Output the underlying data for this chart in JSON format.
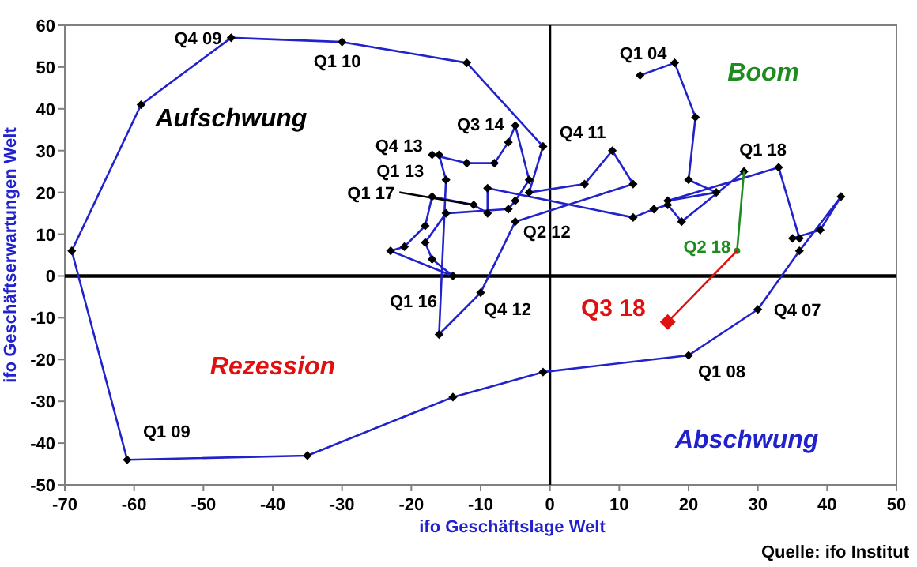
{
  "chart_data": {
    "type": "line",
    "xlabel": "ifo Geschäftslage Welt",
    "ylabel": "ifo Geschäftserwartungen Welt",
    "xlim": [
      -70,
      50
    ],
    "xticks": [
      -70,
      -60,
      -50,
      -40,
      -30,
      -20,
      -10,
      0,
      10,
      20,
      30,
      40,
      50
    ],
    "ylim": [
      -50,
      60
    ],
    "yticks": [
      -50,
      -40,
      -30,
      -20,
      -10,
      0,
      10,
      20,
      30,
      40,
      50,
      60
    ],
    "grid": false,
    "series": [
      {
        "color": "#2222cc",
        "marker": "diamond",
        "x": [
          13,
          18,
          21,
          20,
          24,
          17,
          33,
          36,
          35,
          39,
          42,
          36,
          30,
          20,
          -1,
          -14,
          -35,
          -61,
          -69,
          -59,
          -46,
          -30,
          -12,
          -1,
          -3,
          5,
          9,
          12,
          -5,
          -10,
          -16,
          -15,
          -16,
          -17,
          -12,
          -8,
          -6,
          -5,
          -3,
          -5,
          -6,
          -15,
          -18,
          -17,
          -14,
          -23,
          -21,
          -18,
          -17,
          -11,
          -9,
          -9,
          12,
          15,
          17,
          19,
          28
        ],
        "values": [
          48,
          51,
          38,
          23,
          20,
          18,
          26,
          9,
          9,
          11,
          19,
          6,
          -8,
          -19,
          -23,
          -29,
          -43,
          -44,
          6,
          41,
          57,
          56,
          51,
          31,
          20,
          22,
          30,
          22,
          13,
          -4,
          -14,
          23,
          29,
          29,
          27,
          27,
          32,
          36,
          23,
          18,
          16,
          15,
          8,
          4,
          0,
          6,
          7,
          12,
          19,
          17,
          15,
          21,
          14,
          16,
          17,
          13,
          25
        ]
      },
      {
        "color": "#1e8c1e",
        "marker": "circle",
        "x": [
          28,
          27
        ],
        "values": [
          25,
          6
        ]
      },
      {
        "color": "#e01010",
        "marker": "diamond",
        "x": [
          27,
          17
        ],
        "values": [
          6,
          -11
        ]
      }
    ],
    "annotations": [
      {
        "text": "Q1 04",
        "x": 13,
        "y": 48
      },
      {
        "text": "Q4 07",
        "x": 30,
        "y": -8
      },
      {
        "text": "Q1 08",
        "x": 20,
        "y": -19
      },
      {
        "text": "Q1 09",
        "x": -61,
        "y": -44
      },
      {
        "text": "Q4 09",
        "x": -46,
        "y": 57
      },
      {
        "text": "Q1 10",
        "x": -30,
        "y": 56
      },
      {
        "text": "Q4 11",
        "x": 9,
        "y": 30
      },
      {
        "text": "Q2 12",
        "x": -5,
        "y": 13
      },
      {
        "text": "Q4 12",
        "x": -10,
        "y": -4
      },
      {
        "text": "Q1 13",
        "x": -15,
        "y": 23
      },
      {
        "text": "Q4 13",
        "x": -17,
        "y": 29
      },
      {
        "text": "Q3 14",
        "x": -5,
        "y": 36
      },
      {
        "text": "Q1 16",
        "x": -14,
        "y": 0
      },
      {
        "text": "Q1 17",
        "x": -11,
        "y": 17
      },
      {
        "text": "Q1 18",
        "x": 28,
        "y": 25
      },
      {
        "text": "Q2 18",
        "x": 27,
        "y": 6
      },
      {
        "text": "Q3 18",
        "x": 17,
        "y": -11
      },
      "Aufschwung",
      "Boom",
      "Rezession",
      "Abschwung",
      "Quelle: ifo Institut"
    ]
  }
}
